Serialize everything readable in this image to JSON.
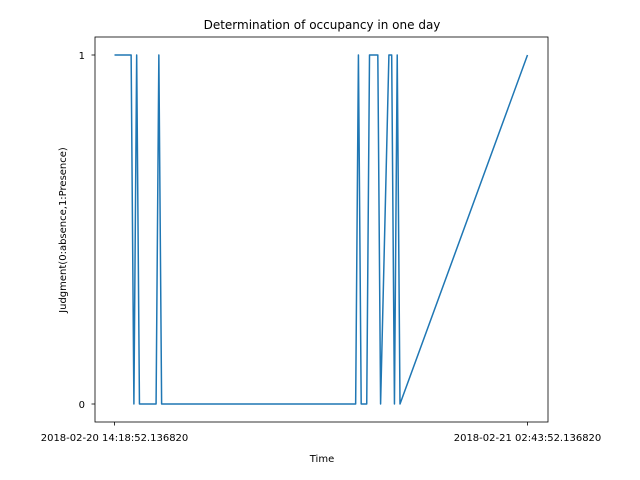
{
  "chart_data": {
    "type": "line",
    "title": "Determination of occupancy in one day",
    "xlabel": "Time",
    "ylabel": "Judgment(0:absence,1:Presence)",
    "x_ticks": [
      "2018-02-20 14:18:52.136820",
      "2018-02-21 02:43:52.136820"
    ],
    "y_ticks": [
      "0",
      "1"
    ],
    "xlim": [
      "2018-02-20 14:18:52.136820",
      "2018-02-21 02:43:52.136820"
    ],
    "ylim": [
      0,
      1
    ],
    "grid": false,
    "colors": {
      "line": "#1f77b4"
    },
    "series": [
      {
        "x": [
          "2018-02-20 14:18:52",
          "2018-02-20 14:48:52",
          "2018-02-20 14:53:52",
          "2018-02-20 14:58:52",
          "2018-02-20 15:03:52",
          "2018-02-20 15:08:52",
          "2018-02-20 15:33:52",
          "2018-02-20 15:38:52",
          "2018-02-20 15:43:52",
          "2018-02-20 21:33:52",
          "2018-02-20 21:38:52",
          "2018-02-20 21:43:52",
          "2018-02-20 21:53:52",
          "2018-02-20 21:58:52",
          "2018-02-20 22:13:52",
          "2018-02-20 22:18:52",
          "2018-02-20 22:33:52",
          "2018-02-20 22:38:52",
          "2018-02-20 22:43:52",
          "2018-02-20 22:48:52",
          "2018-02-20 22:53:52",
          "2018-02-21 02:43:52"
        ],
        "y": [
          1,
          1,
          0,
          1,
          0,
          0,
          0,
          1,
          0,
          0,
          1,
          0,
          0,
          1,
          1,
          0,
          1,
          1,
          0,
          1,
          0,
          1
        ]
      }
    ]
  }
}
